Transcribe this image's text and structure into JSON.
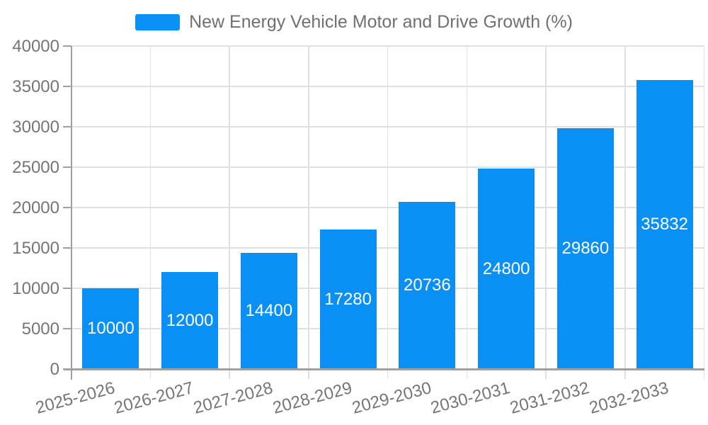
{
  "chart_data": {
    "type": "bar",
    "legend": "New Energy Vehicle Motor and Drive Growth (%)",
    "legend_position": "top-center",
    "categories": [
      "2025-2026",
      "2026-2027",
      "2027-2028",
      "2028-2029",
      "2029-2030",
      "2030-2031",
      "2031-2032",
      "2032-2033"
    ],
    "values": [
      10000,
      12000,
      14400,
      17280,
      20736,
      24800,
      29860,
      35832
    ],
    "data_labels_visible": true,
    "xlabel": "",
    "ylabel": "",
    "ylim": [
      0,
      40000
    ],
    "y_ticks": [
      0,
      5000,
      10000,
      15000,
      20000,
      25000,
      30000,
      35000,
      40000
    ],
    "grid": true,
    "x_tick_rotation_deg": 15,
    "colors": {
      "bar": "#0a8ff5",
      "axis_line": "#a0a0a0",
      "gridline": "#e0e0e0",
      "tick_label": "#757575",
      "legend_text": "#707070",
      "data_label": "#ffffff",
      "background": "#ffffff"
    }
  }
}
